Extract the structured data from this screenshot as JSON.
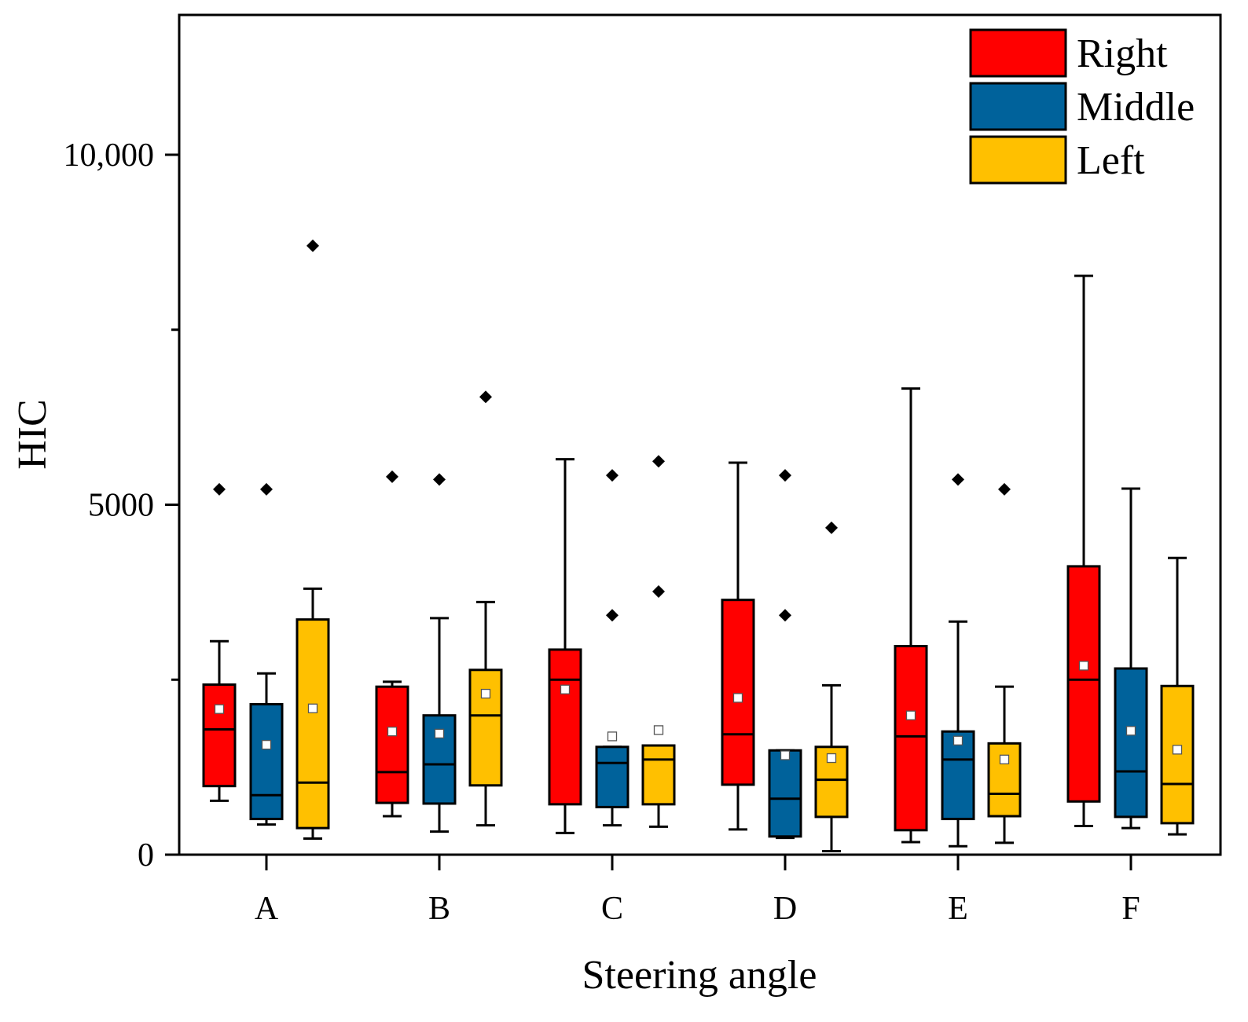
{
  "chart_data": {
    "type": "box",
    "title": "",
    "xlabel": "Steering angle",
    "ylabel": "HIC",
    "ylim": [
      0,
      12000
    ],
    "yticks": [
      0,
      5000,
      10000
    ],
    "ytick_labels": [
      "0",
      "5000",
      "10,000"
    ],
    "yminor_ticks": [
      2500,
      7500
    ],
    "categories": [
      "A",
      "B",
      "C",
      "D",
      "E",
      "F"
    ],
    "legend_position": "top-right",
    "series": [
      {
        "name": "Right",
        "color": "#ff0000",
        "boxes": [
          {
            "whisker_low": 770,
            "q1": 980,
            "median": 1790,
            "q3": 2430,
            "whisker_high": 3050,
            "mean": 2080,
            "outliers": [
              5220
            ]
          },
          {
            "whisker_low": 550,
            "q1": 740,
            "median": 1180,
            "q3": 2400,
            "whisker_high": 2470,
            "mean": 1760,
            "outliers": [
              5400
            ]
          },
          {
            "whisker_low": 310,
            "q1": 720,
            "median": 2500,
            "q3": 2930,
            "whisker_high": 5650,
            "mean": 2360,
            "outliers": []
          },
          {
            "whisker_low": 360,
            "q1": 1000,
            "median": 1720,
            "q3": 3640,
            "whisker_high": 5600,
            "mean": 2240,
            "outliers": []
          },
          {
            "whisker_low": 180,
            "q1": 350,
            "median": 1690,
            "q3": 2980,
            "whisker_high": 6660,
            "mean": 1990,
            "outliers": []
          },
          {
            "whisker_low": 410,
            "q1": 760,
            "median": 2500,
            "q3": 4120,
            "whisker_high": 8270,
            "mean": 2700,
            "outliers": []
          }
        ]
      },
      {
        "name": "Middle",
        "color": "#00629b",
        "boxes": [
          {
            "whisker_low": 430,
            "q1": 510,
            "median": 850,
            "q3": 2150,
            "whisker_high": 2590,
            "mean": 1570,
            "outliers": [
              5220
            ]
          },
          {
            "whisker_low": 330,
            "q1": 730,
            "median": 1290,
            "q3": 1990,
            "whisker_high": 3380,
            "mean": 1730,
            "outliers": [
              5360
            ]
          },
          {
            "whisker_low": 420,
            "q1": 680,
            "median": 1310,
            "q3": 1540,
            "whisker_high": 1540,
            "mean": 1690,
            "outliers": [
              5420,
              3420
            ]
          },
          {
            "whisker_low": 240,
            "q1": 260,
            "median": 800,
            "q3": 1490,
            "whisker_high": 1490,
            "mean": 1420,
            "outliers": [
              5420,
              3420
            ]
          },
          {
            "whisker_low": 120,
            "q1": 510,
            "median": 1360,
            "q3": 1760,
            "whisker_high": 3330,
            "mean": 1630,
            "outliers": [
              5360
            ]
          },
          {
            "whisker_low": 380,
            "q1": 540,
            "median": 1190,
            "q3": 2660,
            "whisker_high": 5230,
            "mean": 1770,
            "outliers": []
          }
        ]
      },
      {
        "name": "Left",
        "color": "#ffc000",
        "boxes": [
          {
            "whisker_low": 230,
            "q1": 380,
            "median": 1030,
            "q3": 3360,
            "whisker_high": 3800,
            "mean": 2090,
            "outliers": [
              8700
            ]
          },
          {
            "whisker_low": 420,
            "q1": 990,
            "median": 1990,
            "q3": 2640,
            "whisker_high": 3610,
            "mean": 2300,
            "outliers": [
              6540
            ]
          },
          {
            "whisker_low": 400,
            "q1": 720,
            "median": 1360,
            "q3": 1560,
            "whisker_high": 1560,
            "mean": 1780,
            "outliers": [
              5620,
              3760
            ]
          },
          {
            "whisker_low": 50,
            "q1": 540,
            "median": 1070,
            "q3": 1540,
            "whisker_high": 2420,
            "mean": 1380,
            "outliers": [
              4670
            ]
          },
          {
            "whisker_low": 170,
            "q1": 550,
            "median": 870,
            "q3": 1590,
            "whisker_high": 2400,
            "mean": 1360,
            "outliers": [
              5220
            ]
          },
          {
            "whisker_low": 290,
            "q1": 450,
            "median": 1010,
            "q3": 2410,
            "whisker_high": 4240,
            "mean": 1500,
            "outliers": []
          }
        ]
      }
    ]
  }
}
